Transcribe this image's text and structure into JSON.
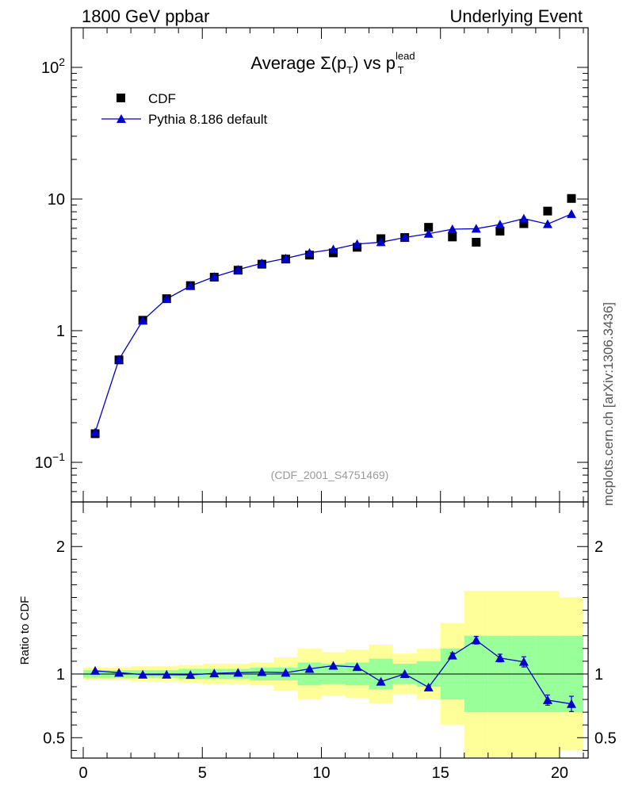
{
  "header": {
    "left": "1800 GeV ppbar",
    "right": "Underlying Event",
    "side_note": "mcplots.cern.ch [arXiv:1306.3436]"
  },
  "chart_data": {
    "type": "scatter",
    "title_prefix": "Average Σ(p",
    "title_sub1": "T",
    "title_mid": ") vs p",
    "title_sup": "lead",
    "title_sub2": "T",
    "watermark": "(CDF_2001_S4751469)",
    "ratio_ylabel": "Ratio to CDF",
    "xlim": [
      -0.5,
      21.2
    ],
    "ylim_main": [
      0.05,
      200
    ],
    "y_scale_main": "log",
    "ylim_ratio": [
      0.34,
      2.35
    ],
    "x_ticks": [
      0,
      5,
      10,
      15,
      20
    ],
    "x_tick_labels": [
      "0",
      "5",
      "10",
      "15",
      "20"
    ],
    "y_ticks_main": [
      {
        "value": 0.1,
        "base": "10",
        "exp": "−1"
      },
      {
        "value": 1,
        "base": "1",
        "exp": ""
      },
      {
        "value": 10,
        "base": "10",
        "exp": ""
      },
      {
        "value": 100,
        "base": "10",
        "exp": "2"
      }
    ],
    "y_ticks_ratio": [
      {
        "value": 0.5,
        "label": "0.5"
      },
      {
        "value": 1,
        "label": "1"
      },
      {
        "value": 2,
        "label": "2"
      }
    ],
    "legend_position": "top-left",
    "x": [
      0.5,
      1.5,
      2.5,
      3.5,
      4.5,
      5.5,
      6.5,
      7.5,
      8.5,
      9.5,
      10.5,
      11.5,
      12.5,
      13.5,
      14.5,
      15.5,
      16.5,
      17.5,
      18.5,
      19.5,
      20.5
    ],
    "bins": [
      [
        0,
        1
      ],
      [
        1,
        2
      ],
      [
        2,
        3
      ],
      [
        3,
        4
      ],
      [
        4,
        5
      ],
      [
        5,
        6
      ],
      [
        6,
        7
      ],
      [
        7,
        8
      ],
      [
        8,
        9
      ],
      [
        9,
        10
      ],
      [
        10,
        11
      ],
      [
        11,
        12
      ],
      [
        12,
        13
      ],
      [
        13,
        14
      ],
      [
        14,
        15
      ],
      [
        15,
        16
      ],
      [
        16,
        17
      ],
      [
        17,
        18
      ],
      [
        18,
        19
      ],
      [
        19,
        20
      ],
      [
        20,
        21
      ]
    ],
    "series": [
      {
        "name": "CDF",
        "color": "#000000",
        "marker": "square",
        "values": [
          0.165,
          0.6,
          1.2,
          1.75,
          2.2,
          2.55,
          2.88,
          3.2,
          3.5,
          3.75,
          3.9,
          4.3,
          5.0,
          5.1,
          6.1,
          5.15,
          4.7,
          5.7,
          6.5,
          8.1,
          10.1
        ],
        "band_stat": [
          0.03,
          0.03,
          0.03,
          0.03,
          0.04,
          0.04,
          0.04,
          0.05,
          0.05,
          0.09,
          0.08,
          0.09,
          0.12,
          0.08,
          0.1,
          0.2,
          0.3,
          0.3,
          0.3,
          0.3,
          0.3
        ],
        "band_total": [
          0.05,
          0.05,
          0.06,
          0.06,
          0.07,
          0.08,
          0.08,
          0.09,
          0.13,
          0.2,
          0.17,
          0.19,
          0.23,
          0.16,
          0.2,
          0.4,
          0.65,
          0.65,
          0.65,
          0.65,
          0.6
        ]
      },
      {
        "name": "Pythia 8.186 default",
        "color": "#0000cc",
        "marker": "triangle",
        "values": [
          0.169,
          0.605,
          1.195,
          1.745,
          2.185,
          2.565,
          2.91,
          3.25,
          3.54,
          3.9,
          4.15,
          4.55,
          4.7,
          5.1,
          5.45,
          5.9,
          5.95,
          6.4,
          7.1,
          6.45,
          7.7
        ],
        "ratio": [
          1.025,
          1.01,
          0.995,
          0.995,
          0.993,
          1.005,
          1.01,
          1.015,
          1.01,
          1.04,
          1.065,
          1.055,
          0.94,
          1.0,
          0.895,
          1.145,
          1.265,
          1.125,
          1.095,
          0.795,
          0.765
        ],
        "ratio_err": [
          0.005,
          0.005,
          0.005,
          0.005,
          0.005,
          0.005,
          0.005,
          0.005,
          0.005,
          0.005,
          0.005,
          0.005,
          0.005,
          0.005,
          0.01,
          0.02,
          0.03,
          0.03,
          0.04,
          0.04,
          0.06
        ]
      }
    ]
  }
}
